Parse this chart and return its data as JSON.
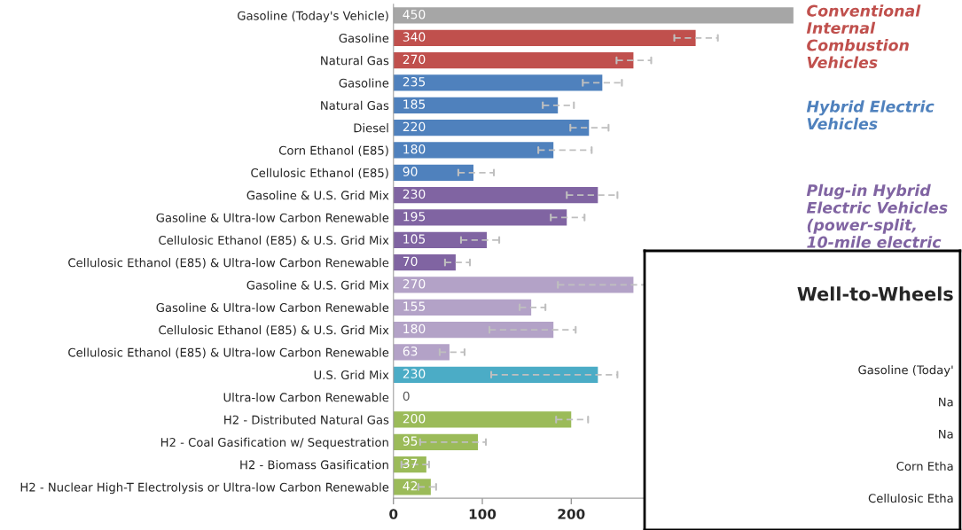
{
  "chart_data": [
    {
      "type": "bar",
      "orientation": "horizontal",
      "categories": [
        "Gasoline (Today's Vehicle)",
        "Gasoline",
        "Natural Gas",
        "Gasoline",
        "Natural Gas",
        "Diesel",
        "Corn Ethanol (E85)",
        "Cellulosic Ethanol (E85)",
        "Gasoline & U.S. Grid Mix",
        "Gasoline & Ultra-low Carbon Renewable",
        "Cellulosic Ethanol (E85) & U.S. Grid Mix",
        "Cellulosic Ethanol (E85) & Ultra-low Carbon Renewable",
        "Gasoline & U.S. Grid Mix",
        "Gasoline & Ultra-low Carbon Renewable",
        "Cellulosic Ethanol (E85) & U.S. Grid Mix",
        "Cellulosic Ethanol (E85) & Ultra-low Carbon Renewable",
        "U.S. Grid Mix",
        "Ultra-low Carbon Renewable",
        "H2 - Distributed Natural Gas",
        "H2 - Coal Gasification w/ Sequestration",
        "H2 - Biomass Gasification",
        "H2 - Nuclear High-T Electrolysis or Ultra-low Carbon Renewable"
      ],
      "values": [
        450,
        340,
        270,
        235,
        185,
        220,
        180,
        90,
        230,
        195,
        105,
        70,
        270,
        155,
        180,
        63,
        230,
        0,
        200,
        95,
        37,
        42
      ],
      "colors": [
        "#a6a6a6",
        "#c0504d",
        "#c0504d",
        "#4f81bd",
        "#4f81bd",
        "#4f81bd",
        "#4f81bd",
        "#4f81bd",
        "#8064a2",
        "#8064a2",
        "#8064a2",
        "#8064a2",
        "#b3a2c7",
        "#b3a2c7",
        "#b3a2c7",
        "#b3a2c7",
        "#4bacc6",
        "#4bacc6",
        "#9bbb59",
        "#9bbb59",
        "#9bbb59",
        "#9bbb59"
      ],
      "errors": [
        null,
        [
          316,
          365
        ],
        [
          251,
          290
        ],
        [
          213,
          257
        ],
        [
          168,
          203
        ],
        [
          199,
          242
        ],
        [
          163,
          223
        ],
        [
          73,
          113
        ],
        [
          195,
          252
        ],
        [
          177,
          215
        ],
        [
          76,
          119
        ],
        [
          58,
          86
        ],
        [
          185,
          283
        ],
        [
          142,
          171
        ],
        [
          108,
          205
        ],
        [
          52,
          80
        ],
        [
          110,
          252
        ],
        null,
        [
          183,
          219
        ],
        [
          30,
          104
        ],
        [
          9,
          40
        ],
        [
          28,
          48
        ]
      ],
      "data_labels": true,
      "xlim": [
        0,
        460
      ],
      "xticks": [
        0,
        100,
        200
      ],
      "grid": false,
      "legend": false,
      "annotations": [
        "Conventional Internal Combustion Vehicles",
        "Hybrid Electric Vehicles",
        "Plug-in Hybrid Electric Vehicles (power-split, 10-mile electric"
      ]
    },
    {
      "type": "other",
      "title": "Well-to-Wheels",
      "annotations": [
        "Gasoline (Today'",
        "Na",
        "Na",
        "Corn Etha",
        "Cellulosic Etha"
      ]
    }
  ]
}
